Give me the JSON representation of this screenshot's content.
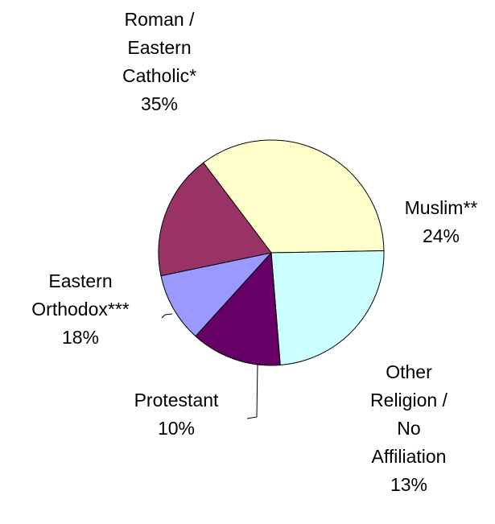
{
  "chart_data": {
    "type": "pie",
    "slices": [
      {
        "label_lines": [
          "Roman /",
          "Eastern",
          "Catholic*"
        ],
        "value": 35,
        "percent_label": "35%",
        "color": "#FFFFCC"
      },
      {
        "label_lines": [
          "Muslim**"
        ],
        "value": 24,
        "percent_label": "24%",
        "color": "#CCFFFF"
      },
      {
        "label_lines": [
          "Other",
          "Religion /",
          "No",
          "Affiliation"
        ],
        "value": 13,
        "percent_label": "13%",
        "color": "#660066"
      },
      {
        "label_lines": [
          "Protestant"
        ],
        "value": 10,
        "percent_label": "10%",
        "color": "#9999FF"
      },
      {
        "label_lines": [
          "Eastern",
          "Orthodox***"
        ],
        "value": 18,
        "percent_label": "18%",
        "color": "#993366"
      }
    ],
    "slice_outline_color": "#000000",
    "leader_lines": true
  }
}
